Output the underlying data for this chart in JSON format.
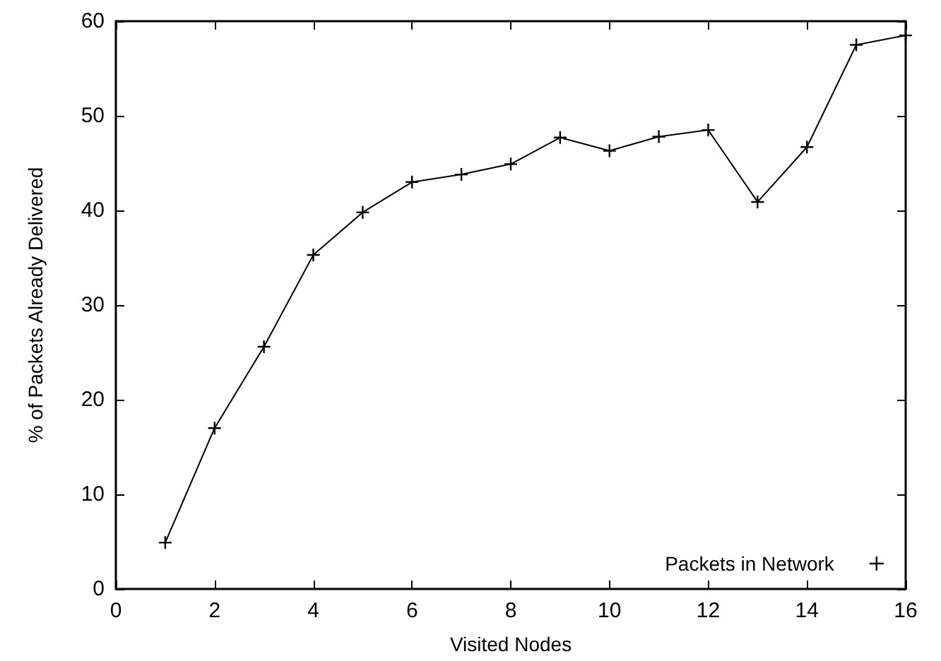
{
  "chart_data": {
    "type": "line",
    "xlabel": "Visited Nodes",
    "ylabel": "% of Packets Already Delivered",
    "x": [
      1,
      2,
      3,
      4,
      5,
      6,
      7,
      8,
      9,
      10,
      11,
      12,
      13,
      14,
      15,
      16
    ],
    "series": [
      {
        "name": "Packets in Network",
        "color": "#000000",
        "values": [
          4.9,
          17.0,
          25.6,
          35.3,
          39.8,
          43.0,
          43.8,
          44.9,
          47.7,
          46.3,
          47.8,
          48.5,
          40.9,
          46.7,
          57.5,
          58.5
        ]
      }
    ],
    "xlim": [
      0,
      16
    ],
    "xticks": [
      0,
      2,
      4,
      6,
      8,
      10,
      12,
      14,
      16
    ],
    "ylim": [
      0,
      60
    ],
    "yticks": [
      0,
      10,
      20,
      30,
      40,
      50,
      60
    ],
    "grid": false,
    "legend": "bottom right",
    "marker": "cross",
    "line_style": "solid"
  }
}
